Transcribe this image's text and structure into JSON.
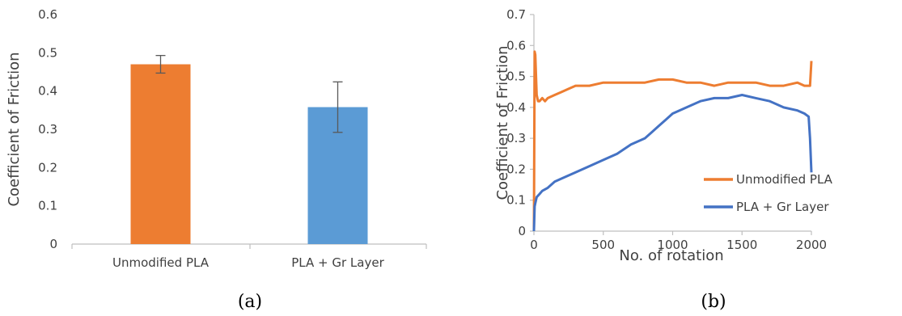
{
  "chart_data": [
    {
      "type": "bar",
      "panel_label": "(a)",
      "categories": [
        "Unmodified PLA",
        "PLA + Gr Layer"
      ],
      "values": [
        0.47,
        0.358
      ],
      "error_bars": [
        0.023,
        0.066
      ],
      "colors": [
        "#ED7D31",
        "#5B9BD5"
      ],
      "ylabel": "Coefficient of Friction",
      "xlabel": "",
      "ylim": [
        0,
        0.6
      ],
      "yticks": [
        "0",
        "0.1",
        "0.2",
        "0.3",
        "0.4",
        "0.5",
        "0.6"
      ],
      "grid": false,
      "legend": "none"
    },
    {
      "type": "line",
      "panel_label": "(b)",
      "xlabel": "No. of rotation",
      "ylabel": "Coefficient of Friction",
      "xlim": [
        0,
        2000
      ],
      "ylim": [
        0,
        0.7
      ],
      "xticks": [
        "0",
        "500",
        "1000",
        "1500",
        "2000"
      ],
      "yticks": [
        "0",
        "0.1",
        "0.2",
        "0.3",
        "0.4",
        "0.5",
        "0.6",
        "0.7"
      ],
      "legend": "center-right",
      "grid": false,
      "series": [
        {
          "name": "Unmodified PLA",
          "color": "#ED7D31",
          "x": [
            0,
            5,
            10,
            15,
            20,
            30,
            40,
            60,
            80,
            100,
            150,
            200,
            250,
            300,
            400,
            500,
            600,
            700,
            800,
            900,
            1000,
            1100,
            1200,
            1300,
            1400,
            1500,
            1600,
            1700,
            1800,
            1900,
            1950,
            1990,
            2000
          ],
          "y": [
            0.0,
            0.58,
            0.57,
            0.5,
            0.44,
            0.42,
            0.42,
            0.43,
            0.42,
            0.43,
            0.44,
            0.45,
            0.46,
            0.47,
            0.47,
            0.48,
            0.48,
            0.48,
            0.48,
            0.49,
            0.49,
            0.48,
            0.48,
            0.47,
            0.48,
            0.48,
            0.48,
            0.47,
            0.47,
            0.48,
            0.47,
            0.47,
            0.55
          ]
        },
        {
          "name": "PLA + Gr Layer",
          "color": "#4472C4",
          "x": [
            0,
            5,
            10,
            20,
            40,
            60,
            100,
            150,
            200,
            300,
            400,
            500,
            600,
            700,
            800,
            850,
            900,
            950,
            1000,
            1100,
            1200,
            1300,
            1400,
            1500,
            1600,
            1700,
            1800,
            1900,
            1950,
            1980,
            1990,
            2000
          ],
          "y": [
            0.0,
            0.08,
            0.09,
            0.11,
            0.12,
            0.13,
            0.14,
            0.16,
            0.17,
            0.19,
            0.21,
            0.23,
            0.25,
            0.28,
            0.3,
            0.32,
            0.34,
            0.36,
            0.38,
            0.4,
            0.42,
            0.43,
            0.43,
            0.44,
            0.43,
            0.42,
            0.4,
            0.39,
            0.38,
            0.37,
            0.3,
            0.19
          ]
        }
      ]
    }
  ]
}
